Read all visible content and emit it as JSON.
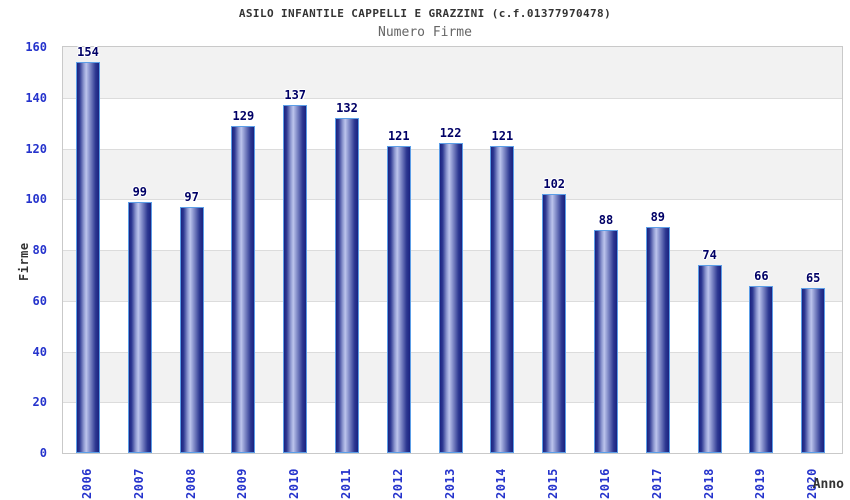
{
  "chart_data": {
    "type": "bar",
    "title": "ASILO INFANTILE CAPPELLI E GRAZZINI (c.f.01377970478)",
    "subtitle": "Numero Firme",
    "ylabel": "Firme",
    "xlabel": "Anno",
    "categories": [
      "2006",
      "2007",
      "2008",
      "2009",
      "2010",
      "2011",
      "2012",
      "2013",
      "2014",
      "2015",
      "2016",
      "2017",
      "2018",
      "2019",
      "2020"
    ],
    "values": [
      154,
      99,
      97,
      129,
      137,
      132,
      121,
      122,
      121,
      102,
      88,
      89,
      74,
      66,
      65
    ],
    "ylim": [
      0,
      160
    ],
    "ytick_step": 20,
    "ytick_labels": [
      "0",
      "20",
      "40",
      "60",
      "80",
      "100",
      "120",
      "140",
      "160"
    ],
    "legend": "none",
    "grid": "horizontal gridlines every 20 with alternating white/gray bands",
    "colors": {
      "bar_edge_dark": "#1a2280",
      "bar_mid": "#8c96cf",
      "bar_highlight": "#bcc4ec",
      "bar_border": "#5c9ee7",
      "value_label": "#000066",
      "axis_tick_label": "#2533cc",
      "title_text": "#333333",
      "subtitle_text": "#666666",
      "band_gray": "#f2f2f2",
      "gridline": "#dcdcdc",
      "plot_border": "#c9c9c9",
      "background": "#ffffff"
    }
  }
}
